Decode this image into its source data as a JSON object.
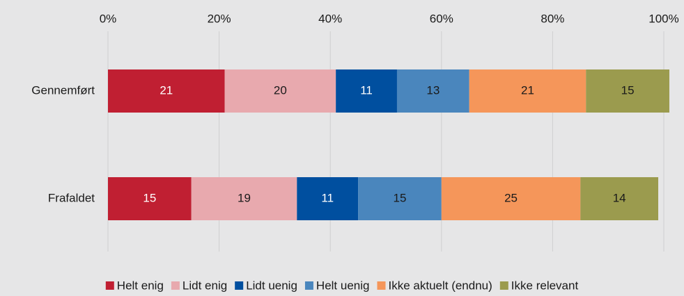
{
  "chart_data": {
    "type": "stacked_barh",
    "categories": [
      "Gennemført",
      "Frafaldet"
    ],
    "series": [
      {
        "name": "Helt enig",
        "color": "#c01f32",
        "label_color": "#ffffff",
        "values": [
          21,
          15
        ]
      },
      {
        "name": "Lidt enig",
        "color": "#e8a9ae",
        "label_color": "#1a1a1a",
        "values": [
          20,
          19
        ]
      },
      {
        "name": "Lidt uenig",
        "color": "#004f9f",
        "label_color": "#ffffff",
        "values": [
          11,
          11
        ]
      },
      {
        "name": "Helt uenig",
        "color": "#4a86bd",
        "label_color": "#1a1a1a",
        "values": [
          13,
          15
        ]
      },
      {
        "name": "Ikke aktuelt (endnu)",
        "color": "#f5965a",
        "label_color": "#1a1a1a",
        "values": [
          21,
          25
        ]
      },
      {
        "name": "Ikke relevant",
        "color": "#9b9b4e",
        "label_color": "#1a1a1a",
        "values": [
          15,
          14
        ]
      }
    ],
    "xlim": [
      0,
      100
    ],
    "xticks": [
      {
        "value": 0,
        "label": "0%"
      },
      {
        "value": 20,
        "label": "20%"
      },
      {
        "value": 40,
        "label": "40%"
      },
      {
        "value": 60,
        "label": "60%"
      },
      {
        "value": 80,
        "label": "80%"
      },
      {
        "value": 100,
        "label": "100%"
      }
    ],
    "grid": true,
    "legend": "bottom"
  }
}
